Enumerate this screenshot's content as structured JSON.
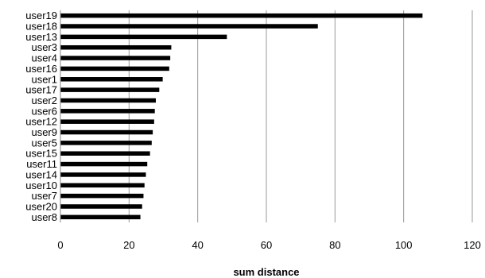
{
  "chart_data": {
    "type": "bar",
    "orientation": "horizontal",
    "title": "",
    "xlabel": "sum distance",
    "ylabel": "",
    "xlim": [
      0,
      120
    ],
    "x_ticks": [
      0,
      20,
      40,
      60,
      80,
      100,
      120
    ],
    "grid": "vertical major gridlines",
    "legend": "none",
    "bar_color": "#000000",
    "grid_color": "#999999",
    "categories": [
      "user19",
      "user18",
      "user13",
      "user3",
      "user4",
      "user16",
      "user1",
      "user17",
      "user2",
      "user6",
      "user12",
      "user9",
      "user5",
      "user15",
      "user11",
      "user14",
      "user10",
      "user7",
      "user20",
      "user8"
    ],
    "values": [
      105.5,
      75,
      48.5,
      32.3,
      32,
      31.7,
      29.8,
      28.8,
      27.8,
      27.5,
      27.3,
      26.9,
      26.6,
      26.1,
      25.3,
      24.9,
      24.5,
      24.2,
      23.8,
      23.3
    ]
  }
}
